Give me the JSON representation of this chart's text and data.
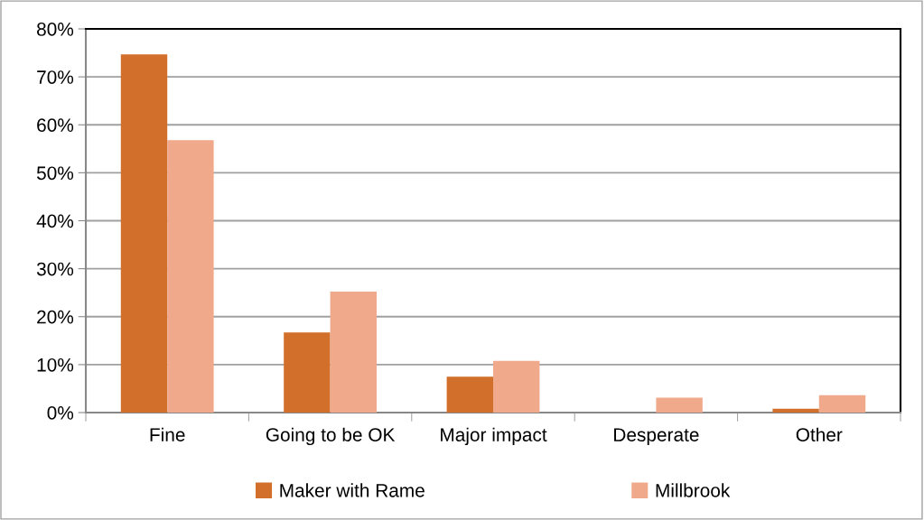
{
  "chart_data": {
    "type": "bar",
    "categories": [
      "Fine",
      "Going to be OK",
      "Major impact",
      "Desperate",
      "Other"
    ],
    "series": [
      {
        "name": "Maker with Rame",
        "color": "#d26f2a",
        "values": [
          74.7,
          16.7,
          7.5,
          0,
          0.8
        ]
      },
      {
        "name": "Millbrook",
        "color": "#f0a98a",
        "values": [
          56.8,
          25.2,
          10.8,
          3.1,
          3.6
        ]
      }
    ],
    "ylim": [
      0,
      80
    ],
    "yticks": [
      {
        "value": 0,
        "label": "0%"
      },
      {
        "value": 10,
        "label": "10%"
      },
      {
        "value": 20,
        "label": "20%"
      },
      {
        "value": 30,
        "label": "30%"
      },
      {
        "value": 40,
        "label": "40%"
      },
      {
        "value": 50,
        "label": "50%"
      },
      {
        "value": 60,
        "label": "60%"
      },
      {
        "value": 70,
        "label": "70%"
      },
      {
        "value": 80,
        "label": "80%"
      }
    ],
    "grid": "y",
    "legend": "bottom"
  }
}
